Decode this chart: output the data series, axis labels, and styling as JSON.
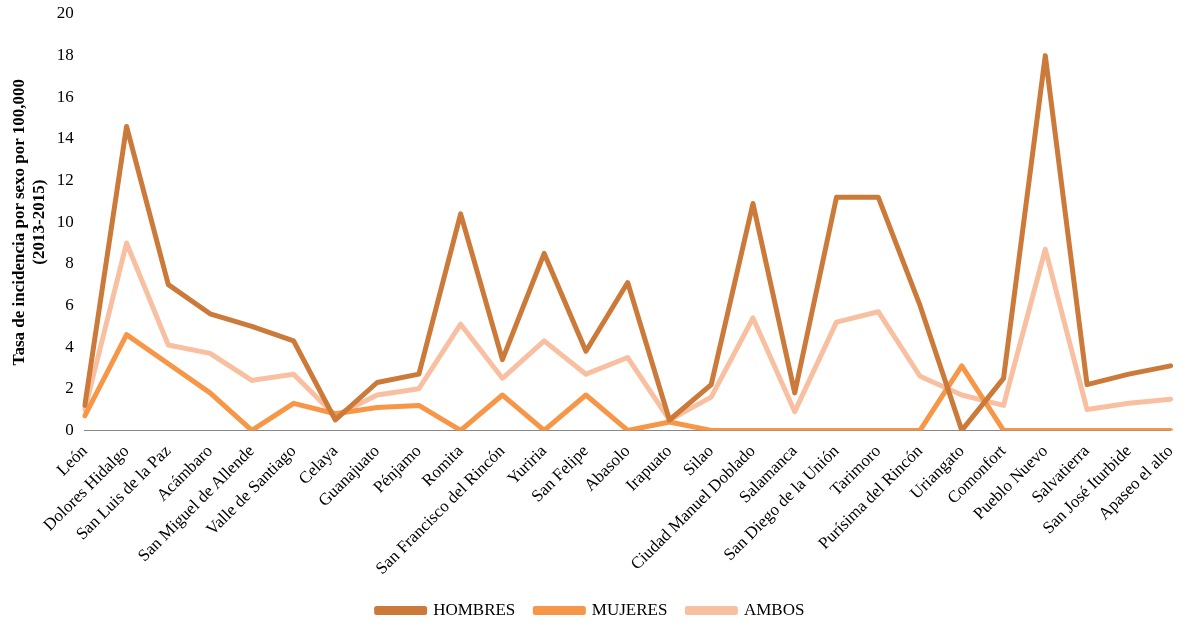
{
  "chart_data": {
    "type": "line",
    "ylabel": "Tasa de incidencia por sexo por 100,000 (2013-2015)",
    "categories": [
      "León",
      "Dolores Hidalgo",
      "San Luis de la Paz",
      "Acámbaro",
      "San Miguel de Allende",
      "Valle de Santiago",
      "Celaya",
      "Guanajuato",
      "Pénjamo",
      "Romita",
      "San Francisco del Rincón",
      "Yuriria",
      "San Felipe",
      "Abasolo",
      "Irapuato",
      "Silao",
      "Ciudad Manuel Doblado",
      "Salamanca",
      "San Diego de la Unión",
      "Tarimoro",
      "Purísima del Rincón",
      "Uriangato",
      "Comonfort",
      "Pueblo Nuevo",
      "Salvatierra",
      "San José Iturbide",
      "Apaseo el alto"
    ],
    "series": [
      {
        "name": "HOMBRES",
        "color": "#cc7a3a",
        "values": [
          1.2,
          14.6,
          7.0,
          5.6,
          5.0,
          4.3,
          0.5,
          2.3,
          2.7,
          10.4,
          3.4,
          8.5,
          3.8,
          7.1,
          0.5,
          2.2,
          10.9,
          1.8,
          11.2,
          11.2,
          6.0,
          0,
          2.5,
          18.0,
          2.2,
          2.7,
          3.1
        ]
      },
      {
        "name": "MUJERES",
        "color": "#f79646",
        "values": [
          0.7,
          4.6,
          3.2,
          1.8,
          0,
          1.3,
          0.8,
          1.1,
          1.2,
          0,
          1.7,
          0,
          1.7,
          0,
          0.4,
          0,
          0,
          0,
          0,
          0,
          0,
          3.1,
          0,
          0,
          0,
          0,
          0
        ]
      },
      {
        "name": "AMBOS",
        "color": "#f8c0a0",
        "values": [
          1.0,
          9.0,
          4.1,
          3.7,
          2.4,
          2.7,
          0.7,
          1.7,
          2.0,
          5.1,
          2.5,
          4.3,
          2.7,
          3.5,
          0.5,
          1.6,
          5.4,
          0.9,
          5.2,
          5.7,
          2.6,
          1.7,
          1.2,
          8.7,
          1.0,
          1.3,
          1.5
        ]
      }
    ],
    "ylim": [
      0,
      20
    ],
    "yticks": [
      0,
      2,
      4,
      6,
      8,
      10,
      12,
      14,
      16,
      18,
      20
    ],
    "grid": false,
    "legend": "bottom",
    "marker": "none",
    "line_style": "solid"
  }
}
